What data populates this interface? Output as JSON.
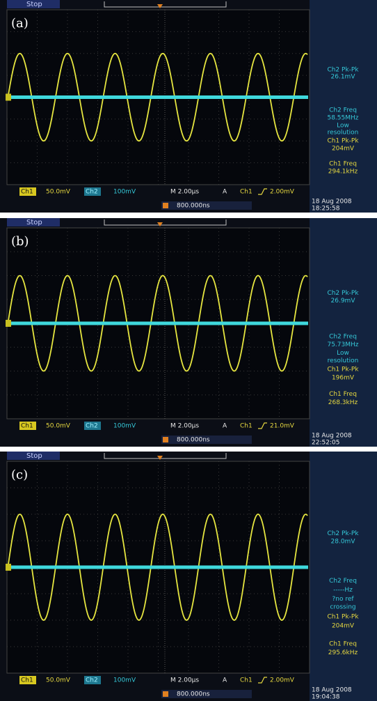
{
  "panels": [
    {
      "label": "(a)",
      "status": "Stop",
      "ch2_readout": [
        "Ch2 Pk-Pk",
        "26.1mV",
        "Ch2 Freq",
        "58.55MHz",
        "Low",
        "resolution"
      ],
      "ch1_readout": [
        "Ch1 Pk-Pk",
        "204mV",
        "Ch1 Freq",
        "294.1kHz"
      ],
      "bottom": {
        "ch1": "Ch1",
        "ch1_scale": "50.0mV",
        "ch2": "Ch2",
        "ch2_scale": "100mV",
        "timebase": "M 2.00µs",
        "trigger_mode": "A",
        "trigger_source": "Ch1",
        "trigger_level": "2.00mV"
      },
      "position": "800.000ns",
      "date": "18 Aug 2008",
      "time": "18:25:58"
    },
    {
      "label": "(b)",
      "status": "Stop",
      "ch2_readout": [
        "Ch2 Pk-Pk",
        "26.9mV",
        "Ch2 Freq",
        "75.73MHz",
        "Low",
        "resolution"
      ],
      "ch1_readout": [
        "Ch1 Pk-Pk",
        "196mV",
        "Ch1 Freq",
        "268.3kHz"
      ],
      "bottom": {
        "ch1": "Ch1",
        "ch1_scale": "50.0mV",
        "ch2": "Ch2",
        "ch2_scale": "100mV",
        "timebase": "M 2.00µs",
        "trigger_mode": "A",
        "trigger_source": "Ch1",
        "trigger_level": "21.0mV"
      },
      "position": "800.000ns",
      "date": "18 Aug 2008",
      "time": "22:52:05"
    },
    {
      "label": "(c)",
      "status": "Stop",
      "ch2_readout": [
        "Ch2 Pk-Pk",
        "28.0mV",
        "Ch2 Freq",
        "-----Hz",
        "?no ref",
        "crossing"
      ],
      "ch1_readout": [
        "Ch1 Pk-Pk",
        "204mV",
        "Ch1 Freq",
        "295.6kHz"
      ],
      "bottom": {
        "ch1": "Ch1",
        "ch1_scale": "50.0mV",
        "ch2": "Ch2",
        "ch2_scale": "100mV",
        "timebase": "M 2.00µs",
        "trigger_mode": "A",
        "trigger_source": "Ch1",
        "trigger_level": "2.00mV"
      },
      "position": "800.000ns",
      "date": "18 Aug 2008",
      "time": "19:04:38"
    }
  ]
}
